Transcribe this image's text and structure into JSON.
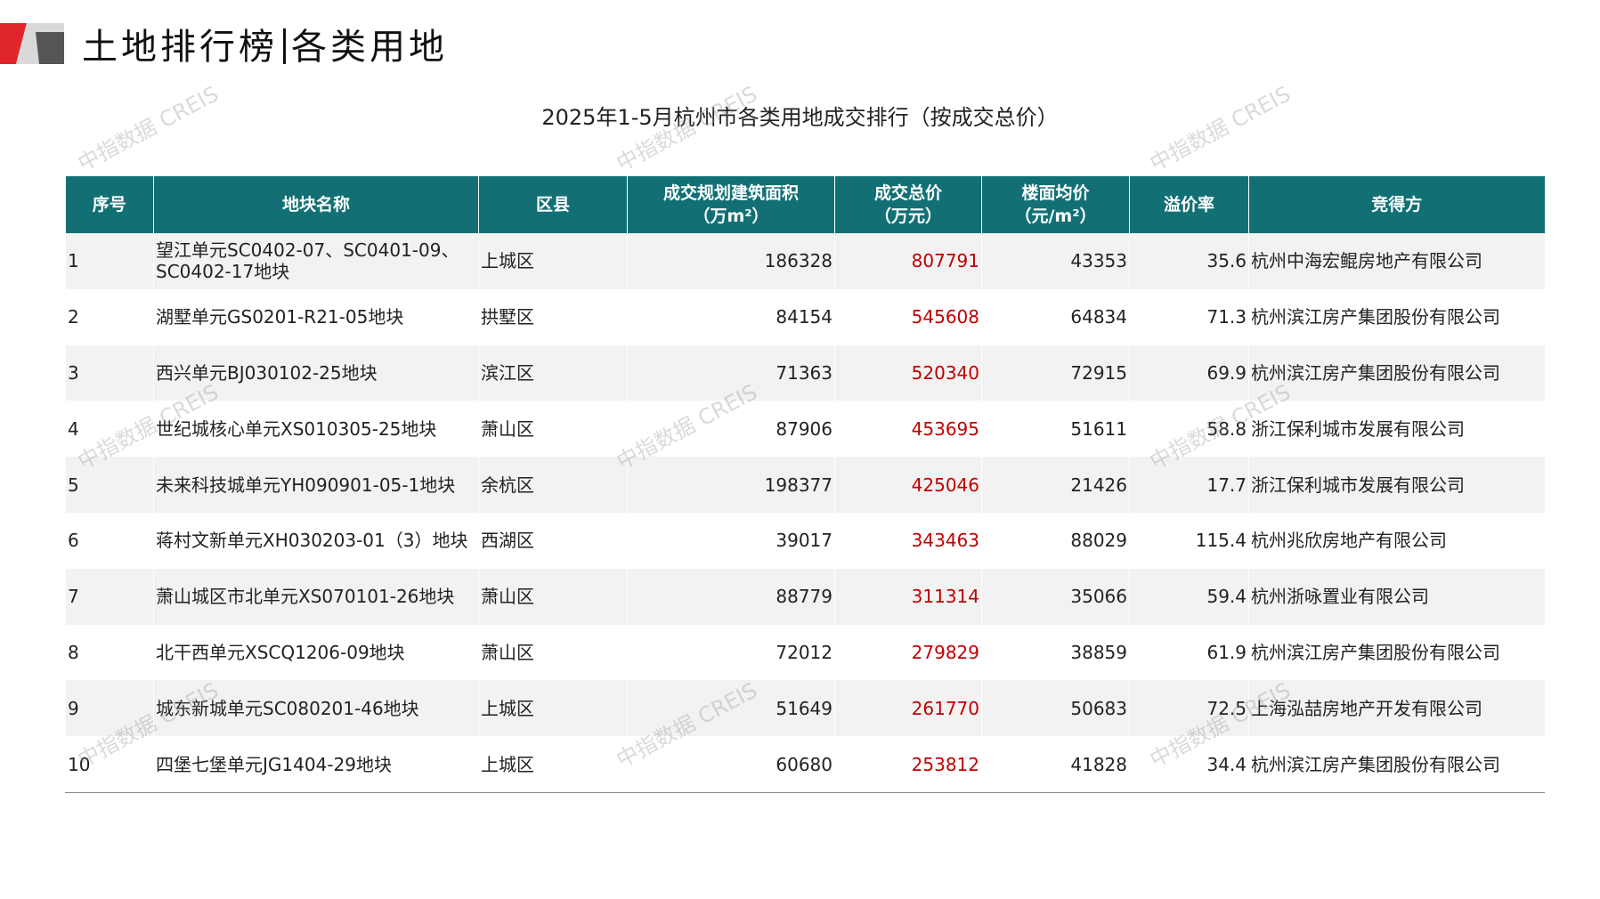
{
  "header": {
    "title_left": "土地排行榜",
    "title_right": "各类用地"
  },
  "watermark": "中指数据 CREIS",
  "table": {
    "title": "2025年1-5月杭州市各类用地成交排行（按成交总价）",
    "columns": [
      [
        "序号"
      ],
      [
        "地块名称"
      ],
      [
        "区县"
      ],
      [
        "成交规划建筑面积",
        "（万m²）"
      ],
      [
        "成交总价",
        "（万元）"
      ],
      [
        "楼面均价",
        "（元/m²）"
      ],
      [
        "溢价率"
      ],
      [
        "竞得方"
      ]
    ],
    "rows": [
      [
        1,
        "望江单元SC0402-07、SC0401-09、SC0402-17地块",
        "上城区",
        186328,
        807791,
        43353,
        35.6,
        "杭州中海宏鲲房地产有限公司"
      ],
      [
        2,
        "湖墅单元GS0201-R21-05地块",
        "拱墅区",
        84154,
        545608,
        64834,
        71.3,
        "杭州滨江房产集团股份有限公司"
      ],
      [
        3,
        "西兴单元BJ030102-25地块",
        "滨江区",
        71363,
        520340,
        72915,
        69.9,
        "杭州滨江房产集团股份有限公司"
      ],
      [
        4,
        "世纪城核心单元XS010305-25地块",
        "萧山区",
        87906,
        453695,
        51611,
        58.8,
        "浙江保利城市发展有限公司"
      ],
      [
        5,
        "未来科技城单元YH090901-05-1地块",
        "余杭区",
        198377,
        425046,
        21426,
        17.7,
        "浙江保利城市发展有限公司"
      ],
      [
        6,
        "蒋村文新单元XH030203-01（3）地块",
        "西湖区",
        39017,
        343463,
        88029,
        115.4,
        "杭州兆欣房地产有限公司"
      ],
      [
        7,
        "萧山城区市北单元XS070101-26地块",
        "萧山区",
        88779,
        311314,
        35066,
        59.4,
        "杭州浙咏置业有限公司"
      ],
      [
        8,
        "北干西单元XSCQ1206-09地块",
        "萧山区",
        72012,
        279829,
        38859,
        61.9,
        "杭州滨江房产集团股份有限公司"
      ],
      [
        9,
        "城东新城单元SC080201-46地块",
        "上城区",
        51649,
        261770,
        50683,
        72.5,
        "上海泓喆房地产开发有限公司"
      ],
      [
        10,
        "四堡七堡单元JG1404-29地块",
        "上城区",
        60680,
        253812,
        41828,
        34.4,
        "杭州滨江房产集团股份有限公司"
      ]
    ]
  }
}
